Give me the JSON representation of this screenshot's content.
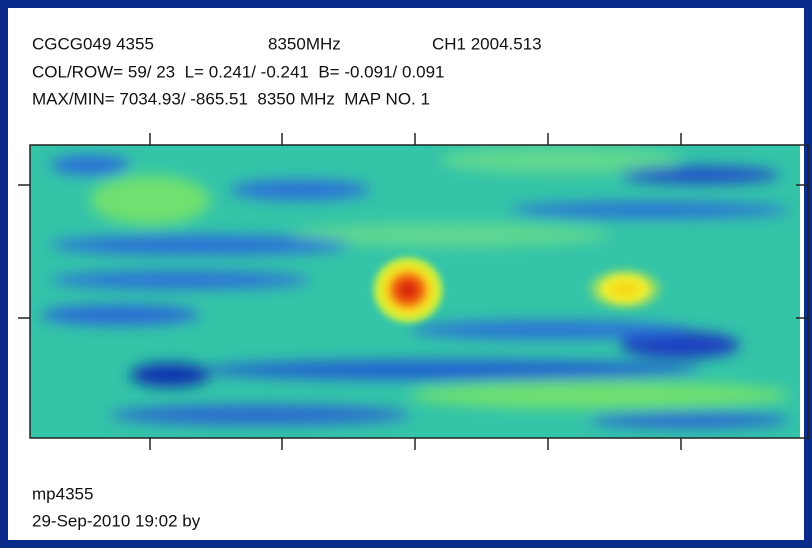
{
  "header": {
    "line1": [
      "CGCG049 4355",
      "8350MHz",
      "CH1 2004.513"
    ],
    "line2": "COL/ROW= 59/ 23  L= 0.241/ -0.241  B= -0.091/ 0.091",
    "line3": "MAX/MIN= 7034.93/ -865.51  8350 MHz  MAP NO. 1"
  },
  "footer": {
    "name": "mp4355",
    "date": "29-Sep-2010 19:02 by"
  }
}
